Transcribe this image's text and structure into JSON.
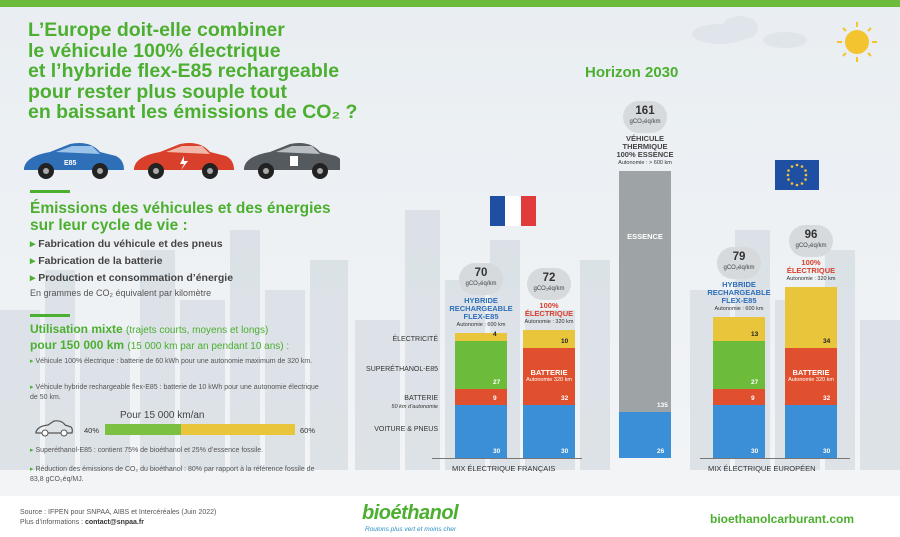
{
  "title_lines": [
    "L’Europe doit-elle combiner",
    "le véhicule 100% électrique",
    "et l’hybride flex-E85 rechargeable",
    "pour rester plus souple tout",
    "en baissant les émissions de CO₂ ?"
  ],
  "car_badges": {
    "e85": "E85"
  },
  "emissions": {
    "heading_lines": [
      "Émissions des véhicules et des énergies",
      "sur leur cycle de vie :"
    ],
    "bullets": [
      "Fabrication du véhicule et des pneus",
      "Fabrication de la batterie",
      "Production et consommation d’énergie"
    ],
    "unit": "En grammes de CO₂ équivalent par kilomètre"
  },
  "usage": {
    "heading_line1": "Utilisation mixte",
    "heading_line1_sub": "(trajets courts, moyens et longs)",
    "heading_line2": "pour 150 000 km",
    "heading_line2_sub": "(15 000 km par an pendant 10 ans) :",
    "notes": [
      "Véhicule 100% électrique : batterie de 60 kWh pour une autonomie maximum de 320 km.",
      "Véhicule hybride rechargeable flex-E85 : batterie de 10 kWh pour une autonomie électrique de 50 km.",
      "Superéthanol-E85 : contient 75% de bioéthanol et 25% d’essence fossile.",
      "Réduction des émissions de CO₂ du bioéthanol : 80% par rapport à la référence fossile de 83,8 gCO₂éq/MJ."
    ],
    "km_title": "Pour 15 000 km/an",
    "split": [
      0.4,
      0.6
    ],
    "split_labels": [
      "40%",
      "60%"
    ]
  },
  "horizon": "Horizon 2030",
  "chart_data": {
    "type": "bar",
    "stacked": true,
    "unit": "gCO₂éq/km",
    "groups": [
      "MIX ÉLECTRIQUE FRANÇAIS",
      "MIX ÉLECTRIQUE EUROPÉEN"
    ],
    "segment_labels": [
      {
        "name": "VOITURE & PNEUS"
      },
      {
        "name": "BATTERIE",
        "sub": "50 km d’autonomie"
      },
      {
        "name": "SUPERÉTHANOL-E85"
      },
      {
        "name": "ÉLECTRICITÉ"
      }
    ],
    "bars": [
      {
        "name_lines": [
          "HYBRIDE",
          "RECHARGEABLE",
          "FLEX-E85"
        ],
        "sub": "Autonomie : 600 km",
        "total": "70",
        "segments": [
          {
            "key": "vehicle",
            "value": 30,
            "color": "#3a8fd6",
            "label": "30"
          },
          {
            "key": "battery",
            "value": 9,
            "color": "#e0502e",
            "label": "9"
          },
          {
            "key": "e85",
            "value": 27,
            "color": "#6dbb3a",
            "label": "27"
          },
          {
            "key": "electricity",
            "value": 4,
            "color": "#e8c53a",
            "label": "4"
          }
        ]
      },
      {
        "name_lines": [
          "100%",
          "ÉLECTRIQUE"
        ],
        "sub": "Autonomie : 320 km",
        "total": "72",
        "red": true,
        "segments": [
          {
            "key": "vehicle",
            "value": 30,
            "color": "#3a8fd6",
            "label": "30"
          },
          {
            "key": "battery",
            "value": 32,
            "color": "#e0502e",
            "label": "32",
            "text": "BATTERIE",
            "text_sub": "Autonomie 320 km"
          },
          {
            "key": "electricity",
            "value": 10,
            "color": "#e8c53a",
            "label": "10"
          }
        ]
      },
      {
        "name_lines": [
          "VÉHICULE",
          "THERMIQUE",
          "100% ESSENCE"
        ],
        "sub": "Autonomie : > 600 km",
        "total": "161",
        "segments": [
          {
            "key": "vehicle",
            "value": 26,
            "color": "#3a8fd6",
            "label": "26"
          },
          {
            "key": "fuel",
            "value": 135,
            "color": "#9ea3a6",
            "label": "135",
            "text": "ESSENCE"
          }
        ]
      },
      {
        "name_lines": [
          "HYBRIDE",
          "RECHARGEABLE",
          "FLEX-E85"
        ],
        "sub": "Autonomie : 600 km",
        "total": "79",
        "segments": [
          {
            "key": "vehicle",
            "value": 30,
            "color": "#3a8fd6",
            "label": "30"
          },
          {
            "key": "battery",
            "value": 9,
            "color": "#e0502e",
            "label": "9"
          },
          {
            "key": "e85",
            "value": 27,
            "color": "#6dbb3a",
            "label": "27"
          },
          {
            "key": "electricity",
            "value": 13,
            "color": "#e8c53a",
            "label": "13"
          }
        ]
      },
      {
        "name_lines": [
          "100%",
          "ÉLECTRIQUE"
        ],
        "sub": "Autonomie : 320 km",
        "total": "96",
        "red": true,
        "segments": [
          {
            "key": "vehicle",
            "value": 30,
            "color": "#3a8fd6",
            "label": "30"
          },
          {
            "key": "battery",
            "value": 32,
            "color": "#e0502e",
            "label": "32",
            "text": "BATTERIE",
            "text_sub": "Autonomie 320 km"
          },
          {
            "key": "electricity",
            "value": 34,
            "color": "#e8c53a",
            "label": "34"
          }
        ]
      }
    ]
  },
  "footer": {
    "source": "Source : IFPEN pour SNPAA, AIBS et Intercéréales (Juin 2022)",
    "info_prefix": "Plus d’informations : ",
    "info_contact": "contact@snpaa.fr",
    "logo": "bioéthanol",
    "slogan": "Roulons plus vert et moins cher",
    "website": "bioethanolcarburant.com"
  }
}
